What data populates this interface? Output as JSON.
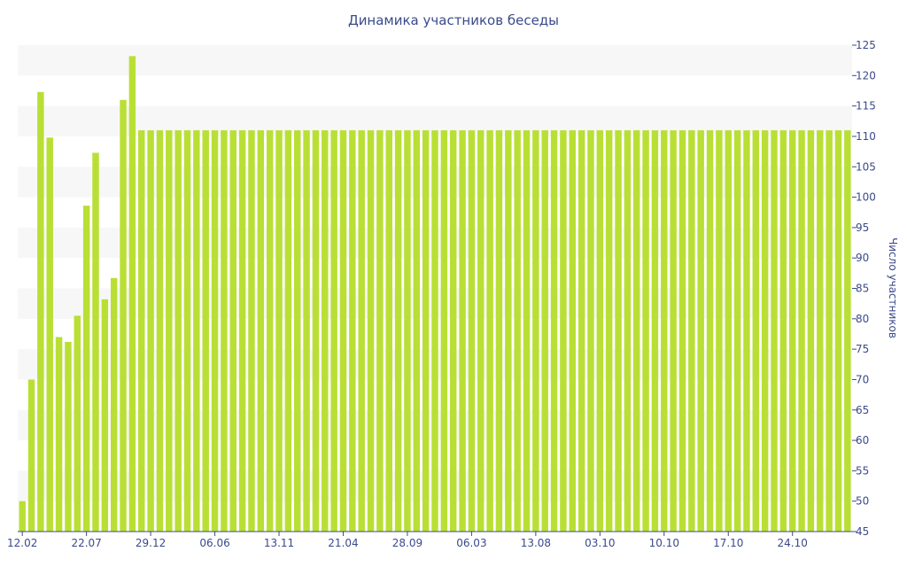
{
  "chart_data": {
    "type": "bar",
    "title": "Динамика участников беседы",
    "xlabel": "",
    "ylabel": "Число участников",
    "ylim": [
      45,
      125
    ],
    "ytick_step": 5,
    "grid": "horizontal-bands",
    "y_axis_side": "right",
    "bar_color": "#b9df35",
    "band_color": "#f7f7f7",
    "text_color": "#3b4a8a",
    "x_tick_labels": [
      {
        "index": 0,
        "label": "12.02"
      },
      {
        "index": 7,
        "label": "22.07"
      },
      {
        "index": 14,
        "label": "29.12"
      },
      {
        "index": 21,
        "label": "06.06"
      },
      {
        "index": 28,
        "label": "13.11"
      },
      {
        "index": 35,
        "label": "21.04"
      },
      {
        "index": 42,
        "label": "28.09"
      },
      {
        "index": 49,
        "label": "06.03"
      },
      {
        "index": 56,
        "label": "13.08"
      },
      {
        "index": 63,
        "label": "03.10"
      },
      {
        "index": 70,
        "label": "10.10"
      },
      {
        "index": 77,
        "label": "17.10"
      },
      {
        "index": 84,
        "label": "24.10"
      }
    ],
    "values": [
      50,
      70,
      117.3,
      109.8,
      77,
      76.2,
      80.5,
      98.6,
      107.3,
      83.2,
      86.7,
      116,
      123.2,
      111,
      111,
      111,
      111,
      111,
      111,
      111,
      111,
      111,
      111,
      111,
      111,
      111,
      111,
      111,
      111,
      111,
      111,
      111,
      111,
      111,
      111,
      111,
      111,
      111,
      111,
      111,
      111,
      111,
      111,
      111,
      111,
      111,
      111,
      111,
      111,
      111,
      111,
      111,
      111,
      111,
      111,
      111,
      111,
      111,
      111,
      111,
      111,
      111,
      111,
      111,
      111,
      111,
      111,
      111,
      111,
      111,
      111,
      111,
      111,
      111,
      111,
      111,
      111,
      111,
      111,
      111,
      111,
      111,
      111,
      111,
      111,
      111,
      111,
      111,
      111,
      111,
      111
    ]
  }
}
